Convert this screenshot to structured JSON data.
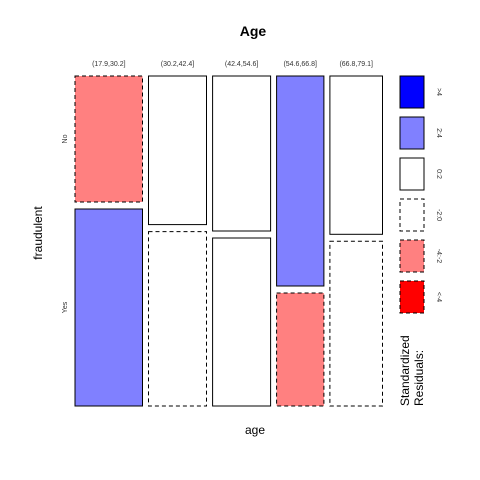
{
  "chart_data": {
    "type": "mosaic",
    "title": "Age",
    "xlabel": "age",
    "ylabel": "fraudulent",
    "x_categories": [
      "(17.9,30.2]",
      "(30.2,42.4]",
      "(42.4,54.6]",
      "(54.6,66.8]",
      "(66.8,79.1]"
    ],
    "y_categories": [
      "No",
      "Yes"
    ],
    "column_proportions": [
      0.25,
      0.215,
      0.215,
      0.175,
      0.195
    ],
    "cells": [
      {
        "x": "(17.9,30.2]",
        "y": "No",
        "proportion": 0.39,
        "residual_class": "-4:-2",
        "border": "dashed"
      },
      {
        "x": "(17.9,30.2]",
        "y": "Yes",
        "proportion": 0.61,
        "residual_class": "2:4",
        "border": "solid"
      },
      {
        "x": "(30.2,42.4]",
        "y": "No",
        "proportion": 0.46,
        "residual_class": "0:2",
        "border": "solid"
      },
      {
        "x": "(30.2,42.4]",
        "y": "Yes",
        "proportion": 0.54,
        "residual_class": "-2:0",
        "border": "dashed"
      },
      {
        "x": "(42.4,54.6]",
        "y": "No",
        "proportion": 0.48,
        "residual_class": "0:2",
        "border": "solid"
      },
      {
        "x": "(42.4,54.6]",
        "y": "Yes",
        "proportion": 0.52,
        "residual_class": "0:2",
        "border": "solid"
      },
      {
        "x": "(54.6,66.8]",
        "y": "No",
        "proportion": 0.65,
        "residual_class": "2:4",
        "border": "solid"
      },
      {
        "x": "(54.6,66.8]",
        "y": "Yes",
        "proportion": 0.35,
        "residual_class": "-4:-2",
        "border": "dashed"
      },
      {
        "x": "(66.8,79.1]",
        "y": "No",
        "proportion": 0.49,
        "residual_class": "0:2",
        "border": "solid"
      },
      {
        "x": "(66.8,79.1]",
        "y": "Yes",
        "proportion": 0.51,
        "residual_class": "-2:0",
        "border": "dashed"
      }
    ],
    "legend": {
      "title_lines": [
        "Standardized",
        "Residuals:"
      ],
      "placement": "right",
      "items": [
        {
          "label": ">4",
          "color": "#0000ff",
          "border": "solid"
        },
        {
          "label": "2:4",
          "color": "#8080ff",
          "border": "solid"
        },
        {
          "label": "0:2",
          "color": "#ffffff",
          "border": "solid"
        },
        {
          "label": "-2:0",
          "color": "#ffffff",
          "border": "dashed"
        },
        {
          "label": "-4:-2",
          "color": "#ff8080",
          "border": "dashed"
        },
        {
          "label": "<-4",
          "color": "#ff0000",
          "border": "dashed"
        }
      ]
    }
  }
}
